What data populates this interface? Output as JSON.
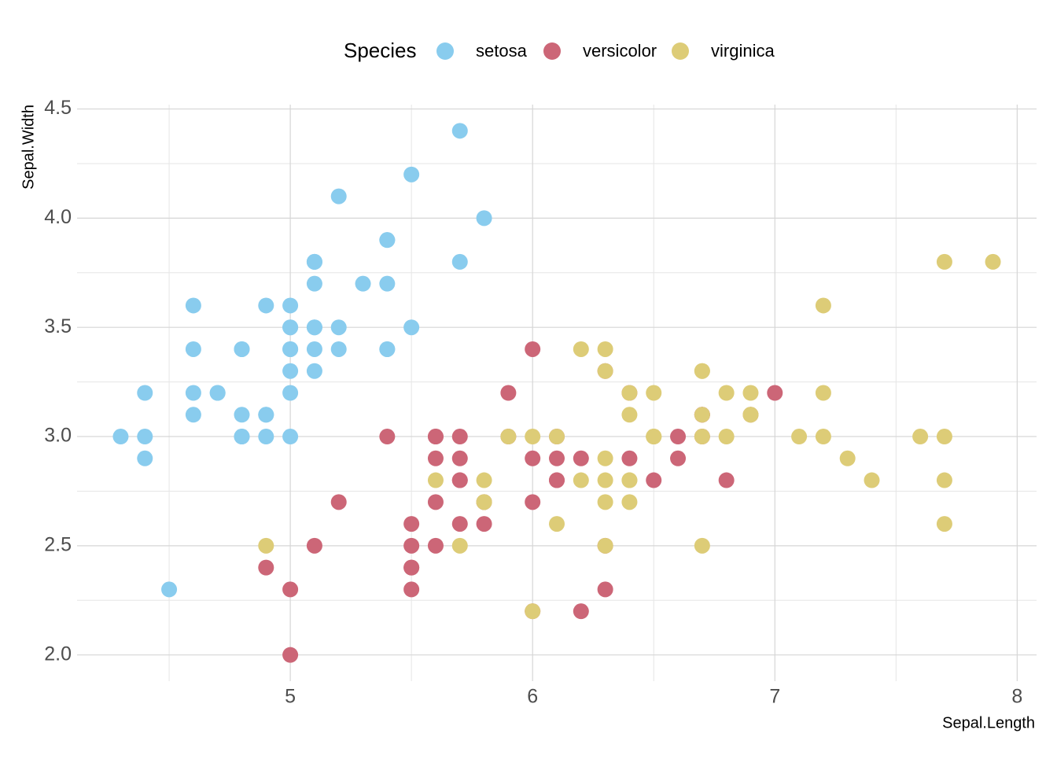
{
  "chart_data": {
    "type": "scatter",
    "x_label": "Sepal.Length",
    "y_label": "Sepal.Width",
    "legend_title": "Species",
    "legend_position": "top",
    "xlim": [
      4.12,
      8.08
    ],
    "ylim": [
      1.88,
      4.52
    ],
    "xticks": [
      5,
      6,
      7,
      8
    ],
    "yticks": [
      {
        "value": 2.0,
        "label": "2.0"
      },
      2.5,
      {
        "value": 3.0,
        "label": "3.0"
      },
      3.5,
      {
        "value": 4.0,
        "label": "4.0"
      },
      4.5
    ],
    "x_minor_breaks": [
      4.5,
      5.5,
      6.5,
      7.5
    ],
    "y_minor_breaks": [
      2.25,
      2.75,
      3.25,
      3.75,
      4.25
    ],
    "grid": true,
    "series": [
      {
        "name": "setosa",
        "color": "#89CCEE",
        "x": [
          5.1,
          4.9,
          4.7,
          4.6,
          5.0,
          5.4,
          4.6,
          5.0,
          4.4,
          4.9,
          5.4,
          4.8,
          4.8,
          4.3,
          5.8,
          5.7,
          5.4,
          5.1,
          5.7,
          5.1,
          5.4,
          5.1,
          4.6,
          5.1,
          4.8,
          5.0,
          5.0,
          5.2,
          5.2,
          4.7,
          4.8,
          5.4,
          5.2,
          5.5,
          4.9,
          5.0,
          5.5,
          4.9,
          4.4,
          5.1,
          5.0,
          4.5,
          4.4,
          5.0,
          5.1,
          4.8,
          5.1,
          4.6,
          5.3,
          5.0
        ],
        "values": [
          3.5,
          3.0,
          3.2,
          3.1,
          3.6,
          3.9,
          3.4,
          3.4,
          2.9,
          3.1,
          3.7,
          3.4,
          3.0,
          3.0,
          4.0,
          4.4,
          3.9,
          3.5,
          3.8,
          3.8,
          3.4,
          3.7,
          3.6,
          3.3,
          3.4,
          3.0,
          3.4,
          3.5,
          3.4,
          3.2,
          3.1,
          3.4,
          4.1,
          4.2,
          3.1,
          3.2,
          3.5,
          3.6,
          3.0,
          3.4,
          3.5,
          2.3,
          3.2,
          3.5,
          3.8,
          3.0,
          3.8,
          3.2,
          3.7,
          3.3
        ]
      },
      {
        "name": "versicolor",
        "color": "#CC6677",
        "x": [
          7.0,
          6.4,
          6.9,
          5.5,
          6.5,
          5.7,
          6.3,
          4.9,
          6.6,
          5.2,
          5.0,
          5.9,
          6.0,
          6.1,
          5.6,
          6.7,
          5.6,
          5.8,
          6.2,
          5.6,
          5.9,
          6.1,
          6.3,
          6.1,
          6.4,
          6.6,
          6.8,
          6.7,
          6.0,
          5.7,
          5.5,
          5.5,
          5.8,
          6.0,
          5.4,
          6.0,
          6.7,
          6.3,
          5.6,
          5.5,
          5.5,
          6.1,
          5.8,
          5.0,
          5.6,
          5.7,
          5.7,
          6.2,
          5.1,
          5.7
        ],
        "values": [
          3.2,
          3.2,
          3.1,
          2.3,
          2.8,
          2.8,
          3.3,
          2.4,
          2.9,
          2.7,
          2.0,
          3.0,
          2.2,
          2.9,
          2.9,
          3.1,
          3.0,
          2.7,
          2.2,
          2.5,
          3.2,
          2.8,
          2.5,
          2.8,
          2.9,
          3.0,
          2.8,
          3.0,
          2.9,
          2.6,
          2.4,
          2.4,
          2.7,
          2.7,
          3.0,
          3.4,
          3.1,
          2.3,
          3.0,
          2.5,
          2.6,
          3.0,
          2.6,
          2.3,
          2.7,
          3.0,
          2.9,
          2.9,
          2.5,
          2.8
        ]
      },
      {
        "name": "virginica",
        "color": "#DDCC77",
        "x": [
          6.3,
          5.8,
          7.1,
          6.3,
          6.5,
          7.6,
          4.9,
          7.3,
          6.7,
          7.2,
          6.5,
          6.4,
          6.8,
          5.7,
          5.8,
          6.4,
          6.5,
          7.7,
          7.7,
          6.0,
          6.9,
          5.6,
          7.7,
          6.3,
          6.7,
          7.2,
          6.2,
          6.1,
          6.4,
          7.2,
          7.4,
          7.9,
          6.4,
          6.3,
          6.1,
          7.7,
          6.3,
          6.4,
          6.0,
          6.9,
          6.7,
          6.9,
          5.8,
          6.8,
          6.7,
          6.7,
          6.3,
          6.5,
          6.2,
          5.9
        ],
        "values": [
          3.3,
          2.7,
          3.0,
          2.9,
          3.0,
          3.0,
          2.5,
          2.9,
          2.5,
          3.6,
          3.2,
          2.7,
          3.0,
          2.5,
          2.8,
          3.2,
          3.0,
          3.8,
          2.6,
          2.2,
          3.2,
          2.8,
          2.8,
          2.7,
          3.3,
          3.2,
          2.8,
          3.0,
          2.8,
          3.0,
          2.8,
          3.8,
          2.8,
          2.8,
          2.6,
          3.0,
          3.4,
          3.1,
          3.0,
          3.1,
          3.1,
          3.1,
          2.7,
          3.2,
          3.3,
          3.0,
          2.5,
          3.0,
          3.4,
          3.0
        ]
      }
    ]
  }
}
